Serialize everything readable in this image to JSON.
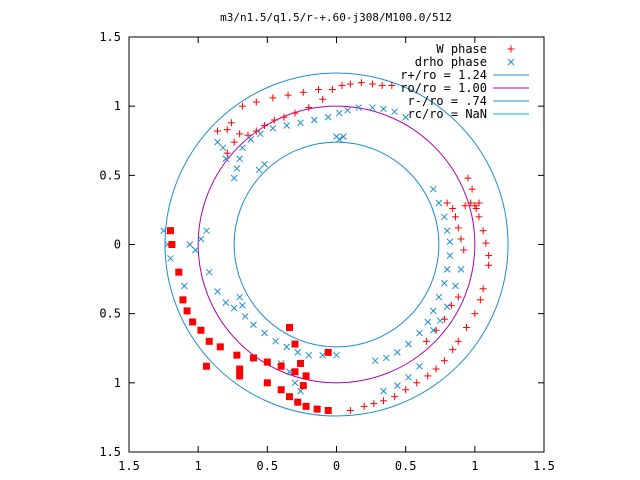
{
  "chart_data": {
    "type": "scatter",
    "title": "m3/n1.5/q1.5/r-+.60-j308/M100.0/512",
    "xlim": [
      -1.5,
      1.5
    ],
    "ylim": [
      -1.5,
      1.5
    ],
    "x_ticks": [
      -1.5,
      -1,
      -0.5,
      0,
      0.5,
      1,
      1.5
    ],
    "x_tick_labels": [
      "1.5",
      "1",
      "0.5",
      "0",
      "0.5",
      "1",
      "1.5"
    ],
    "y_ticks": [
      1.5,
      1,
      0.5,
      0,
      -0.5,
      -1,
      -1.5
    ],
    "y_tick_labels": [
      "1.5",
      "1",
      "0.5",
      "0",
      "0.5",
      "1",
      "1.5"
    ],
    "grid": false,
    "legend_position": "top-right",
    "circles": [
      {
        "name": "r+/ro = 1.24",
        "radius": 1.24,
        "color": "#1f8fd0"
      },
      {
        "name": "ro/ro = 1.00",
        "radius": 1.0,
        "color": "#b000b0"
      },
      {
        "name": "r-/ro = .74",
        "radius": 0.74,
        "color": "#1f8fd0"
      },
      {
        "name": "rc/ro = NaN",
        "radius": null,
        "color": "#00b8c8"
      }
    ],
    "series": [
      {
        "name": "W phase",
        "color": "#ff0000",
        "marker": "plus",
        "points": [
          [
            -0.86,
            0.82
          ],
          [
            -0.79,
            0.83
          ],
          [
            -0.7,
            0.8
          ],
          [
            -0.64,
            0.79
          ],
          [
            -0.58,
            0.82
          ],
          [
            -0.52,
            0.86
          ],
          [
            -0.45,
            0.9
          ],
          [
            -0.38,
            0.92
          ],
          [
            -0.3,
            0.95
          ],
          [
            -0.2,
            0.99
          ],
          [
            -0.1,
            1.05
          ],
          [
            -0.03,
            1.12
          ],
          [
            0.04,
            1.15
          ],
          [
            0.1,
            1.16
          ],
          [
            0.18,
            1.17
          ],
          [
            0.26,
            1.16
          ],
          [
            0.33,
            1.15
          ],
          [
            0.4,
            1.15
          ],
          [
            -0.68,
            1.0
          ],
          [
            -0.58,
            1.03
          ],
          [
            -0.46,
            1.06
          ],
          [
            -0.35,
            1.08
          ],
          [
            -0.24,
            1.1
          ],
          [
            -0.13,
            1.12
          ],
          [
            -0.76,
            0.88
          ],
          [
            -0.74,
            0.74
          ],
          [
            -0.79,
            0.66
          ],
          [
            0.95,
            0.48
          ],
          [
            0.98,
            0.4
          ],
          [
            1.0,
            0.28
          ],
          [
            1.03,
            0.2
          ],
          [
            1.06,
            0.1
          ],
          [
            1.08,
            0.01
          ],
          [
            1.1,
            -0.08
          ],
          [
            1.1,
            -0.15
          ],
          [
            1.06,
            -0.32
          ],
          [
            1.04,
            -0.4
          ],
          [
            1.0,
            -0.5
          ],
          [
            0.94,
            -0.6
          ],
          [
            0.88,
            -0.7
          ],
          [
            0.84,
            -0.76
          ],
          [
            0.78,
            -0.84
          ],
          [
            0.72,
            -0.9
          ],
          [
            0.66,
            -0.95
          ],
          [
            0.58,
            -1.0
          ],
          [
            0.5,
            -1.05
          ],
          [
            0.42,
            -1.1
          ],
          [
            0.34,
            -1.13
          ],
          [
            0.27,
            -1.15
          ],
          [
            0.2,
            -1.17
          ],
          [
            0.1,
            -1.2
          ],
          [
            0.8,
            0.3
          ],
          [
            0.84,
            0.26
          ],
          [
            0.86,
            0.2
          ],
          [
            0.88,
            0.12
          ],
          [
            0.9,
            0.04
          ],
          [
            0.92,
            -0.04
          ],
          [
            0.93,
            0.28
          ],
          [
            0.97,
            0.3
          ],
          [
            1.01,
            0.26
          ],
          [
            1.03,
            0.3
          ],
          [
            0.65,
            -0.7
          ],
          [
            0.72,
            -0.62
          ],
          [
            0.78,
            -0.54
          ],
          [
            0.83,
            -0.44
          ],
          [
            0.88,
            -0.38
          ]
        ]
      },
      {
        "name": "drho phase",
        "color": "#1f8fd0",
        "marker": "cross",
        "points": [
          [
            -0.74,
            0.48
          ],
          [
            -0.72,
            0.55
          ],
          [
            -0.7,
            0.62
          ],
          [
            -0.68,
            0.7
          ],
          [
            -0.62,
            0.76
          ],
          [
            -0.55,
            0.8
          ],
          [
            -0.46,
            0.84
          ],
          [
            -0.36,
            0.86
          ],
          [
            -0.26,
            0.88
          ],
          [
            -0.16,
            0.9
          ],
          [
            -0.06,
            0.92
          ],
          [
            0.02,
            0.95
          ],
          [
            0.08,
            0.97
          ],
          [
            0.16,
            0.99
          ],
          [
            0.26,
            0.99
          ],
          [
            0.34,
            0.98
          ],
          [
            0.42,
            0.96
          ],
          [
            0.5,
            0.92
          ],
          [
            0.0,
            0.78
          ],
          [
            0.02,
            0.76
          ],
          [
            0.05,
            0.78
          ],
          [
            -0.56,
            0.54
          ],
          [
            -0.52,
            0.58
          ],
          [
            0.7,
            0.4
          ],
          [
            0.74,
            0.3
          ],
          [
            0.78,
            0.2
          ],
          [
            0.8,
            0.1
          ],
          [
            0.82,
            0.02
          ],
          [
            0.82,
            -0.08
          ],
          [
            0.8,
            -0.18
          ],
          [
            0.78,
            -0.28
          ],
          [
            0.74,
            -0.38
          ],
          [
            0.7,
            -0.48
          ],
          [
            0.66,
            -0.56
          ],
          [
            0.6,
            -0.64
          ],
          [
            0.52,
            -0.72
          ],
          [
            0.44,
            -0.78
          ],
          [
            0.36,
            -0.82
          ],
          [
            0.28,
            -0.84
          ],
          [
            0.9,
            -0.18
          ],
          [
            0.86,
            -0.3
          ],
          [
            0.8,
            -0.45
          ],
          [
            0.75,
            -0.55
          ],
          [
            0.7,
            -0.62
          ],
          [
            0.6,
            -0.88
          ],
          [
            0.52,
            -0.96
          ],
          [
            0.44,
            -1.02
          ],
          [
            0.34,
            -1.06
          ],
          [
            -1.25,
            0.1
          ],
          [
            -1.22,
            0.0
          ],
          [
            -1.2,
            -0.1
          ],
          [
            -1.14,
            -0.2
          ],
          [
            -1.1,
            -0.3
          ],
          [
            -1.06,
            0.0
          ],
          [
            -1.02,
            -0.04
          ],
          [
            -0.98,
            0.04
          ],
          [
            -0.94,
            0.1
          ],
          [
            -0.92,
            -0.2
          ],
          [
            -0.86,
            -0.34
          ],
          [
            -0.8,
            -0.42
          ],
          [
            -0.74,
            -0.46
          ],
          [
            -0.66,
            -0.52
          ],
          [
            -0.6,
            -0.58
          ],
          [
            -0.52,
            -0.64
          ],
          [
            -0.44,
            -0.7
          ],
          [
            -0.36,
            -0.74
          ],
          [
            -0.28,
            -0.78
          ],
          [
            -0.2,
            -0.8
          ],
          [
            -0.1,
            -0.8
          ],
          [
            0.0,
            -0.8
          ],
          [
            -0.7,
            -0.38
          ],
          [
            -0.68,
            -0.44
          ],
          [
            -0.4,
            -0.86
          ],
          [
            -0.34,
            -0.92
          ],
          [
            -0.3,
            -1.0
          ],
          [
            -0.26,
            -1.06
          ],
          [
            -0.8,
            0.62
          ],
          [
            -0.82,
            0.7
          ],
          [
            -0.86,
            0.74
          ]
        ]
      }
    ],
    "red_square_points": [
      [
        -1.2,
        0.1
      ],
      [
        -1.19,
        0.0
      ],
      [
        -1.14,
        -0.2
      ],
      [
        -1.11,
        -0.4
      ],
      [
        -1.08,
        -0.48
      ],
      [
        -1.04,
        -0.56
      ],
      [
        -0.98,
        -0.62
      ],
      [
        -0.92,
        -0.7
      ],
      [
        -0.84,
        -0.74
      ],
      [
        -0.72,
        -0.8
      ],
      [
        -0.6,
        -0.82
      ],
      [
        -0.5,
        -0.85
      ],
      [
        -0.4,
        -0.88
      ],
      [
        -0.3,
        -0.92
      ],
      [
        -0.22,
        -0.95
      ],
      [
        -0.94,
        -0.88
      ],
      [
        -0.7,
        -0.9
      ],
      [
        -0.7,
        -0.95
      ],
      [
        -0.5,
        -1.0
      ],
      [
        -0.4,
        -1.05
      ],
      [
        -0.34,
        -1.1
      ],
      [
        -0.28,
        -1.14
      ],
      [
        -0.22,
        -1.17
      ],
      [
        -0.14,
        -1.19
      ],
      [
        -0.06,
        -1.2
      ],
      [
        -0.34,
        -0.6
      ],
      [
        -0.3,
        -0.72
      ],
      [
        -0.26,
        -0.86
      ],
      [
        -0.24,
        -1.02
      ],
      [
        -0.06,
        -0.78
      ]
    ]
  }
}
